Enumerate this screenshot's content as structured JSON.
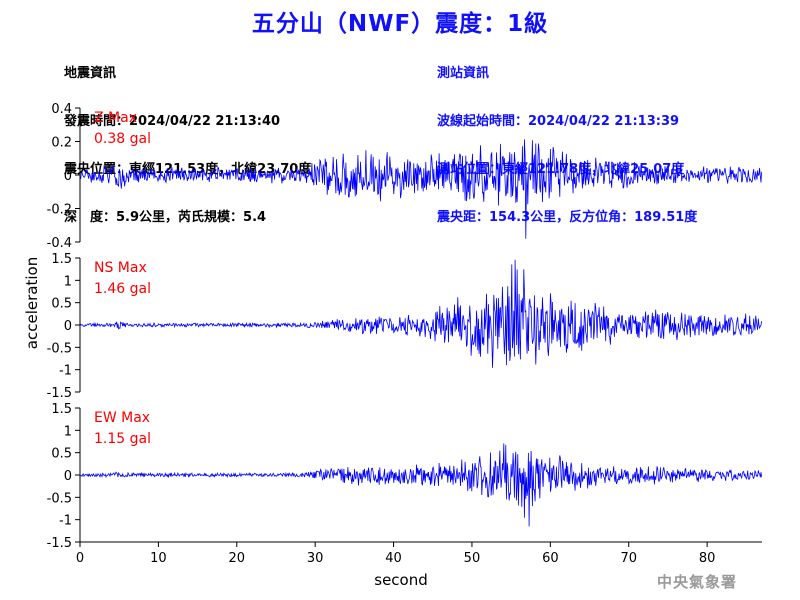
{
  "title": "五分山（NWF）震度：1級",
  "quake_info": {
    "heading": "地震資訊",
    "origin_time": "發震時間：2024/04/22 21:13:40",
    "epicenter": "震央位置：東經121.53度，北緯23.70度",
    "depth_magnitude": "深　度：5.9公里，芮氏規模：5.4"
  },
  "station_info": {
    "heading": "測站資訊",
    "wave_start": "波線起始時間：2024/04/22 21:13:39",
    "station_location": "測站位置：東經121.78度，北緯25.07度",
    "distance_azimuth": "震央距：154.3公里，反方位角：189.51度"
  },
  "watermark": "中央氣象署",
  "colors": {
    "trace": "#0000ff",
    "max_label": "#ff0000",
    "title": "#1010ff",
    "axis": "#000000",
    "watermark": "#9a9a9a"
  },
  "chart_data": {
    "type": "line",
    "xlabel": "second",
    "ylabel": "acceleration",
    "xlim": [
      0,
      87
    ],
    "x_ticks": [
      0,
      10,
      20,
      30,
      40,
      50,
      60,
      70,
      80
    ],
    "grid": false,
    "panels": [
      {
        "component": "Z",
        "max_label": "Z Max",
        "max_value": "0.38 gal",
        "ylim": [
          -0.4,
          0.4
        ],
        "y_ticks": [
          0.4,
          0.2,
          0,
          -0.2,
          -0.4
        ],
        "y_tick_labels": [
          "0.4",
          "0.2",
          "0",
          "-0.2",
          "-0.4"
        ],
        "peak": {
          "t": 56.9,
          "value": -0.38
        },
        "envelope": [
          [
            0,
            0.05
          ],
          [
            4,
            0.06
          ],
          [
            5,
            0.11
          ],
          [
            6,
            0.06
          ],
          [
            10,
            0.05
          ],
          [
            20,
            0.05
          ],
          [
            29,
            0.06
          ],
          [
            31,
            0.12
          ],
          [
            34,
            0.16
          ],
          [
            38,
            0.17
          ],
          [
            42,
            0.15
          ],
          [
            45,
            0.13
          ],
          [
            48,
            0.16
          ],
          [
            51,
            0.19
          ],
          [
            54,
            0.21
          ],
          [
            56,
            0.27
          ],
          [
            57,
            0.26
          ],
          [
            59,
            0.2
          ],
          [
            61,
            0.16
          ],
          [
            63,
            0.13
          ],
          [
            66,
            0.11
          ],
          [
            70,
            0.09
          ],
          [
            75,
            0.07
          ],
          [
            80,
            0.06
          ],
          [
            87,
            0.05
          ]
        ]
      },
      {
        "component": "NS",
        "max_label": "NS Max",
        "max_value": "1.46 gal",
        "ylim": [
          -1.5,
          1.5
        ],
        "y_ticks": [
          1.5,
          1,
          0.5,
          0,
          -0.5,
          -1,
          -1.5
        ],
        "y_tick_labels": [
          "1.5",
          "1",
          "0.5",
          "0",
          "-0.5",
          "-1",
          "-1.5"
        ],
        "peak": {
          "t": 55.5,
          "value": 1.46
        },
        "envelope": [
          [
            0,
            0.04
          ],
          [
            4,
            0.05
          ],
          [
            5,
            0.1
          ],
          [
            6,
            0.05
          ],
          [
            28,
            0.05
          ],
          [
            31,
            0.1
          ],
          [
            35,
            0.2
          ],
          [
            40,
            0.25
          ],
          [
            44,
            0.3
          ],
          [
            47,
            0.55
          ],
          [
            50,
            0.8
          ],
          [
            53,
            1.1
          ],
          [
            55,
            1.4
          ],
          [
            57,
            1.25
          ],
          [
            59,
            0.9
          ],
          [
            62,
            0.7
          ],
          [
            66,
            0.5
          ],
          [
            70,
            0.4
          ],
          [
            75,
            0.38
          ],
          [
            80,
            0.3
          ],
          [
            87,
            0.25
          ]
        ]
      },
      {
        "component": "EW",
        "max_label": "EW Max",
        "max_value": "1.15 gal",
        "ylim": [
          -1.5,
          1.5
        ],
        "y_ticks": [
          1.5,
          1,
          0.5,
          0,
          -0.5,
          -1,
          -1.5
        ],
        "y_tick_labels": [
          "1.5",
          "1",
          "0.5",
          "0",
          "-0.5",
          "-1",
          "-1.5"
        ],
        "peak": {
          "t": 57.3,
          "value": -1.15
        },
        "envelope": [
          [
            0,
            0.04
          ],
          [
            4,
            0.05
          ],
          [
            5,
            0.1
          ],
          [
            6,
            0.05
          ],
          [
            28,
            0.05
          ],
          [
            31,
            0.15
          ],
          [
            35,
            0.25
          ],
          [
            40,
            0.25
          ],
          [
            44,
            0.3
          ],
          [
            48,
            0.35
          ],
          [
            51,
            0.5
          ],
          [
            53,
            0.7
          ],
          [
            55,
            0.9
          ],
          [
            57,
            1.05
          ],
          [
            59,
            0.7
          ],
          [
            62,
            0.4
          ],
          [
            65,
            0.35
          ],
          [
            70,
            0.25
          ],
          [
            75,
            0.2
          ],
          [
            80,
            0.15
          ],
          [
            87,
            0.12
          ]
        ]
      }
    ]
  }
}
